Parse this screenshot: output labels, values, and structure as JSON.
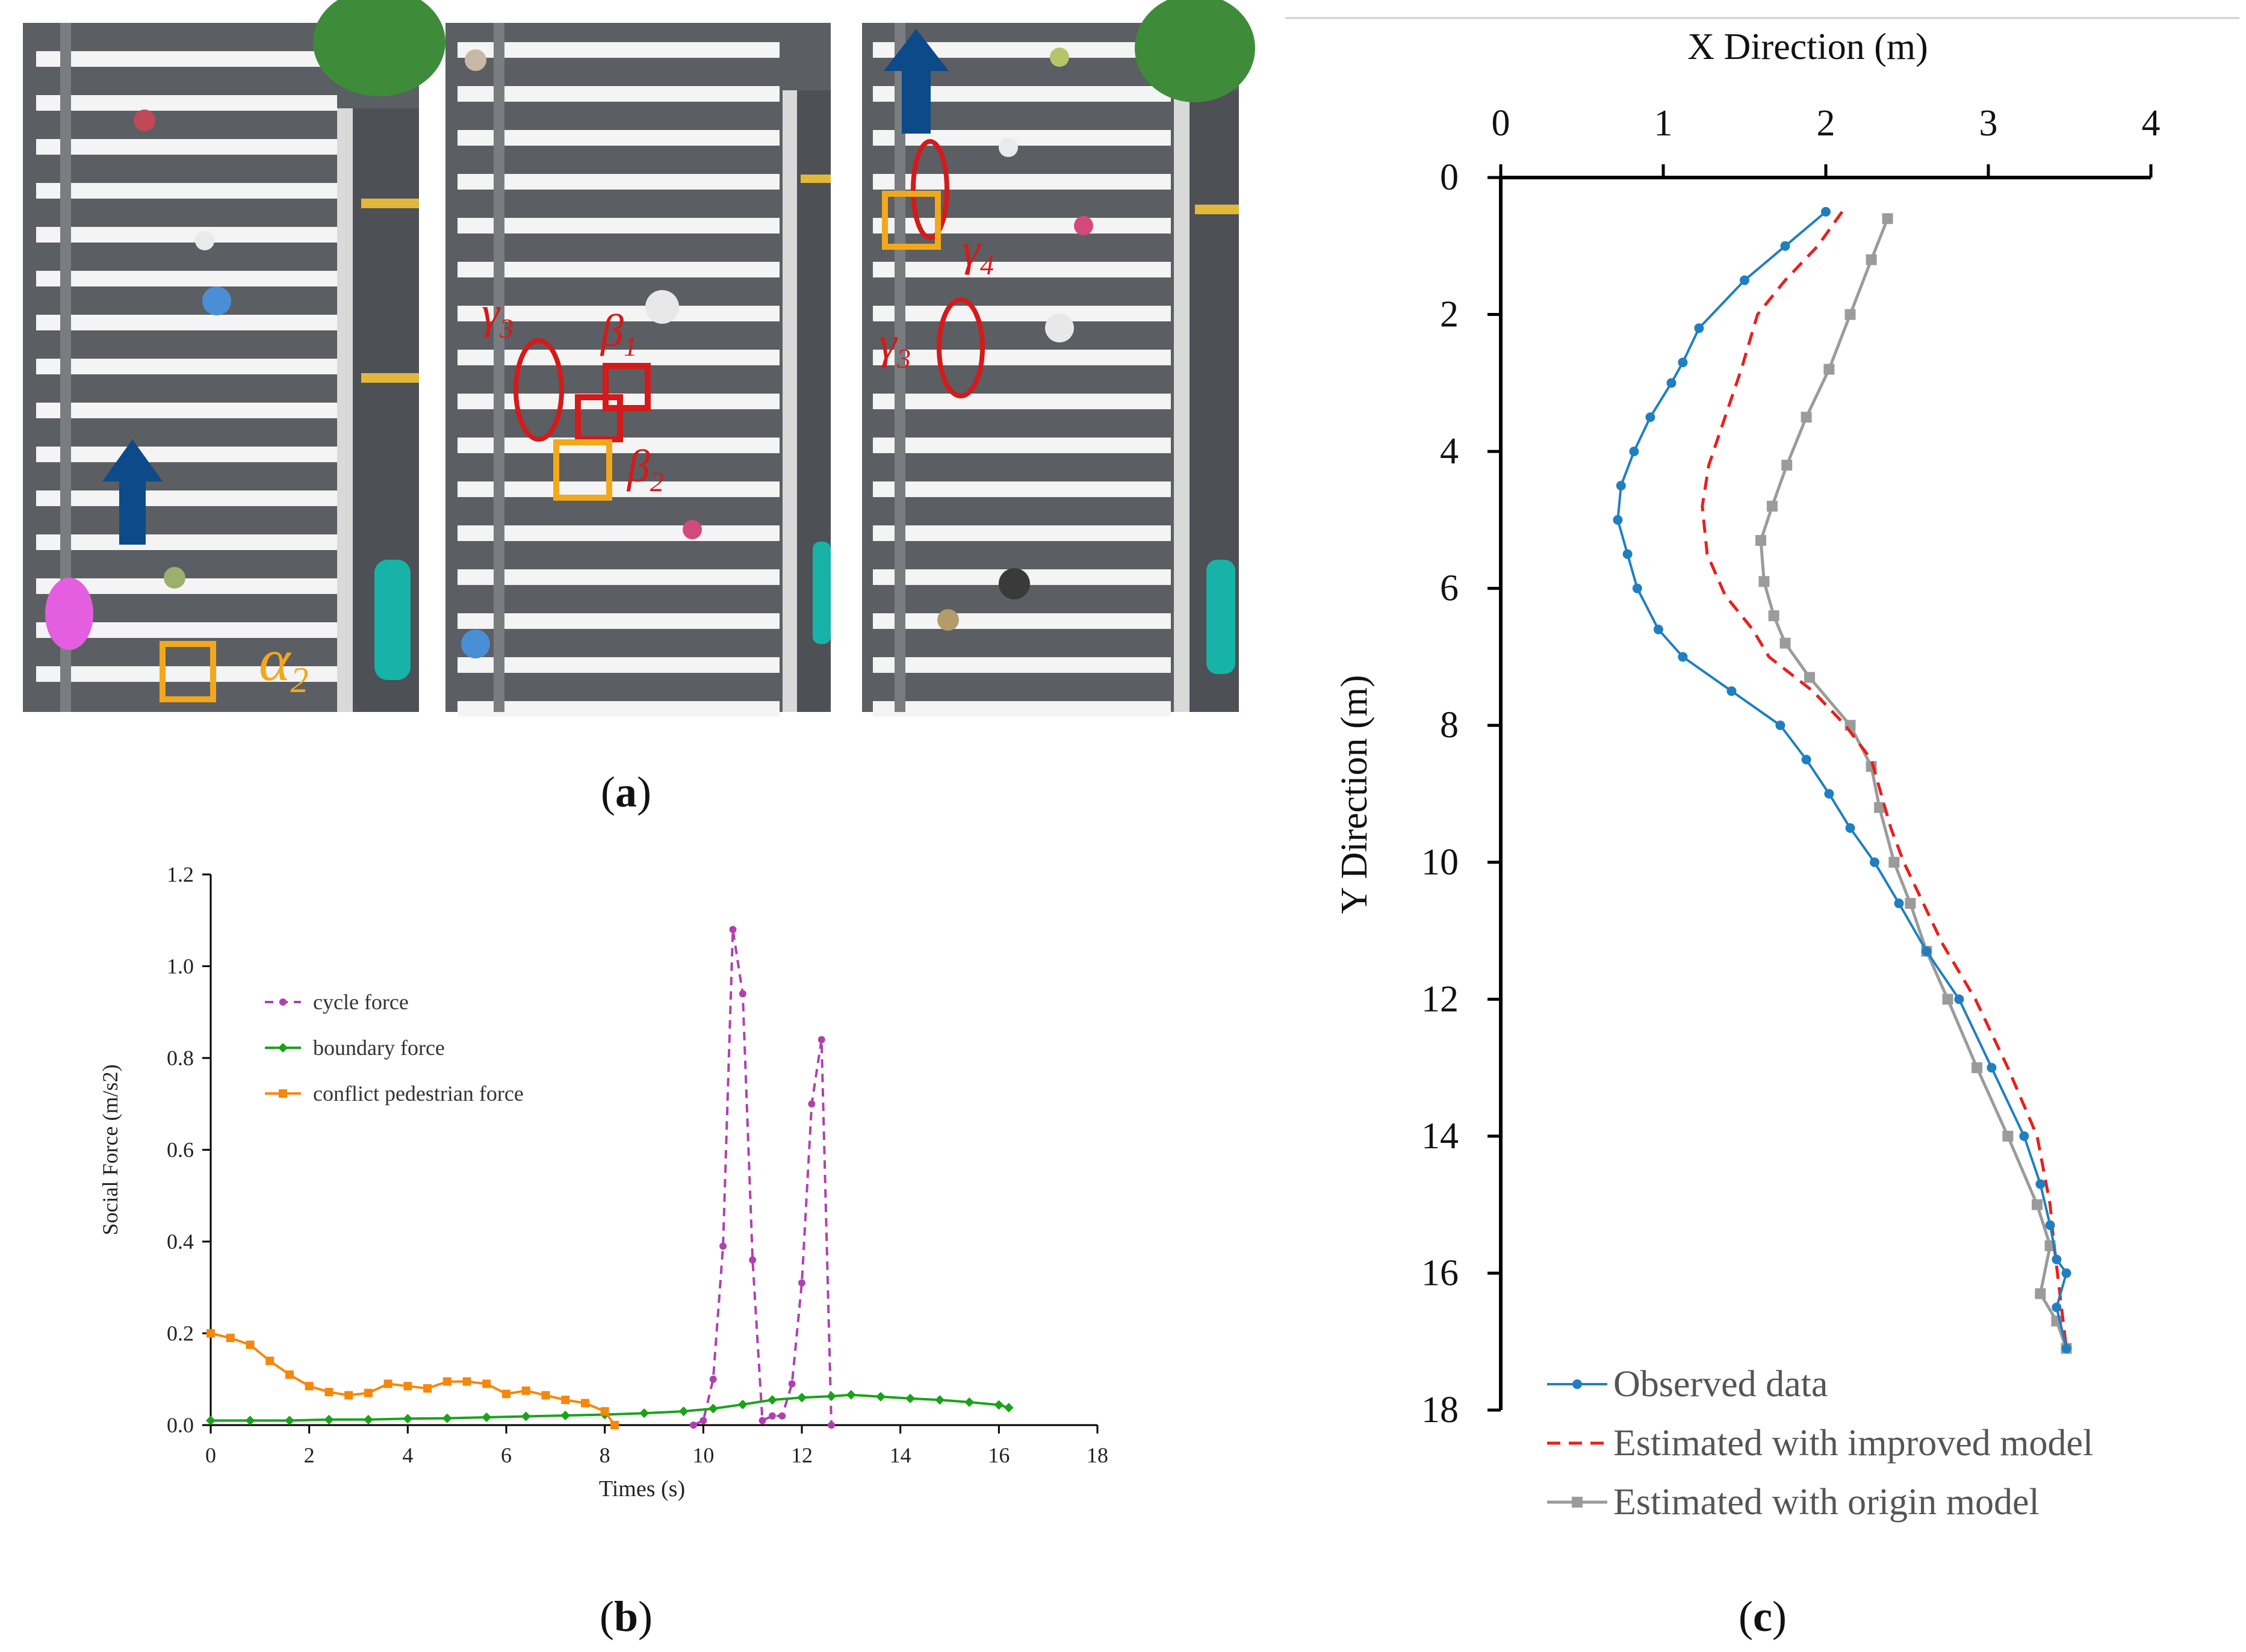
{
  "panel_labels": {
    "a": {
      "open": "(",
      "letter": "a",
      "close": ")"
    },
    "b": {
      "open": "(",
      "letter": "b",
      "close": ")"
    },
    "c": {
      "open": "(",
      "letter": "c",
      "close": ")"
    }
  },
  "photo_annotations": {
    "alpha2": "α",
    "alpha2_sub": "2",
    "gamma3": "γ",
    "gamma3_sub": "3",
    "beta1": "β",
    "beta1_sub": "1",
    "beta2": "β",
    "beta2_sub": "2",
    "gamma4": "γ",
    "gamma4_sub": "4",
    "gamma3b": "γ",
    "gamma3b_sub": "3"
  },
  "colors": {
    "road": "#5b5e62",
    "stripe": "#f4f4f4",
    "tree": "#3e8c3a",
    "arrow": "#0c4a8a",
    "red_mark": "#d41a1a",
    "orange_mark": "#f2a81c",
    "cycle": "#b040b0",
    "boundary": "#1aa31a",
    "conflict": "#f5870d",
    "observed": "#1f7fc0",
    "improved": "#e8201c",
    "origin": "#9b9b9b"
  },
  "chart_data": [
    {
      "type": "line",
      "panel": "b",
      "title": "",
      "xlabel": "Times (s)",
      "ylabel": "Social Force (m/s2)",
      "xlim": [
        0,
        18
      ],
      "ylim": [
        0,
        1.2
      ],
      "xticks": [
        "0",
        "2",
        "4",
        "6",
        "8",
        "10",
        "12",
        "14",
        "16",
        "18"
      ],
      "yticks": [
        "0.0",
        "0.2",
        "0.4",
        "0.6",
        "0.8",
        "1.0",
        "1.2"
      ],
      "legend_position": "top-left",
      "series": [
        {
          "name": "cycle force",
          "style": "dashed-dots",
          "x": [
            9.8,
            10.0,
            10.2,
            10.4,
            10.6,
            10.8,
            11.0,
            11.2,
            11.4,
            11.6,
            11.8,
            12.0,
            12.2,
            12.4,
            12.6
          ],
          "y": [
            0.0,
            0.01,
            0.1,
            0.39,
            1.08,
            0.94,
            0.36,
            0.01,
            0.02,
            0.02,
            0.09,
            0.31,
            0.7,
            0.84,
            0.0
          ]
        },
        {
          "name": "boundary force",
          "style": "solid-diamonds",
          "x": [
            0,
            0.8,
            1.6,
            2.4,
            3.2,
            4.0,
            4.8,
            5.6,
            6.4,
            7.2,
            8.0,
            8.8,
            9.6,
            10.2,
            10.8,
            11.4,
            12.0,
            12.6,
            13.0,
            13.6,
            14.2,
            14.8,
            15.4,
            16.0,
            16.2
          ],
          "y": [
            0.01,
            0.01,
            0.01,
            0.012,
            0.012,
            0.014,
            0.015,
            0.017,
            0.019,
            0.021,
            0.023,
            0.026,
            0.03,
            0.036,
            0.045,
            0.055,
            0.06,
            0.063,
            0.066,
            0.062,
            0.058,
            0.055,
            0.05,
            0.044,
            0.038
          ]
        },
        {
          "name": "conflict pedestrian force",
          "style": "solid-squares",
          "x": [
            0,
            0.4,
            0.8,
            1.2,
            1.6,
            2.0,
            2.4,
            2.8,
            3.2,
            3.6,
            4.0,
            4.4,
            4.8,
            5.2,
            5.6,
            6.0,
            6.4,
            6.8,
            7.2,
            7.6,
            8.0,
            8.2
          ],
          "y": [
            0.2,
            0.19,
            0.175,
            0.14,
            0.11,
            0.085,
            0.072,
            0.065,
            0.07,
            0.09,
            0.085,
            0.08,
            0.095,
            0.095,
            0.09,
            0.068,
            0.075,
            0.065,
            0.055,
            0.048,
            0.03,
            0.0
          ]
        }
      ]
    },
    {
      "type": "line",
      "panel": "c",
      "title": "",
      "xlabel": "X Direction (m)",
      "ylabel": "Y Direction (m)",
      "xlim": [
        0,
        4
      ],
      "ylim": [
        0,
        18
      ],
      "y_inverted": true,
      "x_axis_position": "top",
      "xticks": [
        "0",
        "1",
        "2",
        "3",
        "4"
      ],
      "yticks": [
        "0",
        "2",
        "4",
        "6",
        "8",
        "10",
        "12",
        "14",
        "16",
        "18"
      ],
      "legend_position": "bottom-left",
      "series": [
        {
          "name": "Observed data",
          "style": "solid-dots",
          "x": [
            2.0,
            1.75,
            1.5,
            1.22,
            1.12,
            1.05,
            0.92,
            0.82,
            0.74,
            0.72,
            0.78,
            0.84,
            0.97,
            1.12,
            1.42,
            1.72,
            1.88,
            2.02,
            2.15,
            2.3,
            2.45,
            2.62,
            2.82,
            3.02,
            3.22,
            3.32,
            3.38,
            3.42,
            3.48,
            3.42,
            3.48
          ],
          "y": [
            0.5,
            1.0,
            1.5,
            2.2,
            2.7,
            3.0,
            3.5,
            4.0,
            4.5,
            5.0,
            5.5,
            6.0,
            6.6,
            7.0,
            7.5,
            8.0,
            8.5,
            9.0,
            9.5,
            10.0,
            10.6,
            11.3,
            12.0,
            13.0,
            14.0,
            14.7,
            15.3,
            15.8,
            16.0,
            16.5,
            17.1
          ]
        },
        {
          "name": "Estimated with improved model",
          "style": "dashed",
          "x": [
            2.1,
            1.95,
            1.75,
            1.58,
            1.48,
            1.38,
            1.28,
            1.24,
            1.27,
            1.38,
            1.55,
            1.65,
            1.92,
            2.12,
            2.28,
            2.34,
            2.4,
            2.48,
            2.58,
            2.72,
            2.92,
            3.12,
            3.3,
            3.38,
            3.4,
            3.44,
            3.48
          ],
          "y": [
            0.5,
            1.0,
            1.5,
            2.0,
            2.8,
            3.5,
            4.2,
            4.8,
            5.5,
            6.1,
            6.6,
            7.0,
            7.5,
            8.0,
            8.5,
            9.0,
            9.5,
            10.0,
            10.5,
            11.2,
            12.0,
            13.0,
            14.0,
            15.0,
            15.5,
            16.3,
            17.1
          ]
        },
        {
          "name": "Estimated with origin model",
          "style": "solid-squares",
          "x": [
            2.38,
            2.28,
            2.15,
            2.02,
            1.88,
            1.76,
            1.67,
            1.6,
            1.62,
            1.68,
            1.75,
            1.9,
            2.15,
            2.28,
            2.33,
            2.42,
            2.52,
            2.62,
            2.75,
            2.93,
            3.12,
            3.3,
            3.38,
            3.32,
            3.42,
            3.48
          ],
          "y": [
            0.6,
            1.2,
            2.0,
            2.8,
            3.5,
            4.2,
            4.8,
            5.3,
            5.9,
            6.4,
            6.8,
            7.3,
            8.0,
            8.6,
            9.2,
            10.0,
            10.6,
            11.3,
            12.0,
            13.0,
            14.0,
            15.0,
            15.6,
            16.3,
            16.7,
            17.1
          ]
        }
      ]
    }
  ]
}
